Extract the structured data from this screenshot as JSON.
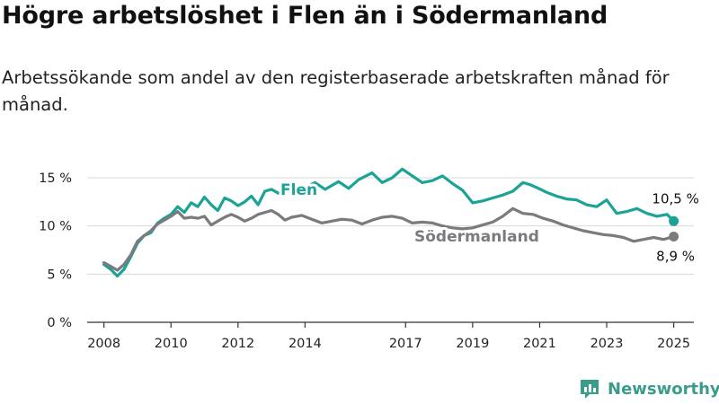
{
  "title": "Högre arbetslöshet i Flen än i Södermanland",
  "subtitle": "Arbetssökande som andel av den registerbaserade arbetskraften månad för månad.",
  "brand": {
    "name": "Newsworthy",
    "icon": "bar-chart-logo-icon"
  },
  "colors": {
    "flen": "#1ba396",
    "sodermanland": "#7a7a7f",
    "grid": "#d9d9d9",
    "axis": "#333333"
  },
  "chart_data": {
    "type": "line",
    "ylim": [
      0,
      15
    ],
    "yticks": [
      0,
      5,
      10,
      15
    ],
    "ytick_labels": [
      "0 %",
      "5 %",
      "10 %",
      "15 %"
    ],
    "xlim": [
      2007.5,
      2025.6
    ],
    "xticks": [
      2008,
      2010,
      2012,
      2014,
      2017,
      2019,
      2021,
      2023,
      2025
    ],
    "xtick_labels": [
      "2008",
      "2010",
      "2012",
      "2014",
      "2017",
      "2019",
      "2021",
      "2023",
      "2025"
    ],
    "grid": true,
    "series": [
      {
        "name": "Flen",
        "key": "flen",
        "end_label": "10,5 %",
        "x": [
          2008.0,
          2008.2,
          2008.4,
          2008.6,
          2008.8,
          2009.0,
          2009.2,
          2009.4,
          2009.6,
          2009.8,
          2010.0,
          2010.2,
          2010.4,
          2010.6,
          2010.8,
          2011.0,
          2011.2,
          2011.4,
          2011.6,
          2011.8,
          2012.0,
          2012.2,
          2012.4,
          2012.6,
          2012.8,
          2013.0,
          2013.2,
          2013.4,
          2013.6,
          2014.0,
          2014.3,
          2014.6,
          2015.0,
          2015.3,
          2015.6,
          2016.0,
          2016.3,
          2016.6,
          2016.9,
          2017.2,
          2017.5,
          2017.8,
          2018.1,
          2018.4,
          2018.7,
          2019.0,
          2019.3,
          2019.6,
          2019.9,
          2020.2,
          2020.5,
          2020.7,
          2020.9,
          2021.2,
          2021.5,
          2021.8,
          2022.1,
          2022.4,
          2022.7,
          2023.0,
          2023.3,
          2023.6,
          2023.9,
          2024.2,
          2024.5,
          2024.8,
          2025.0
        ],
        "y": [
          6.0,
          5.5,
          4.8,
          5.5,
          6.8,
          8.2,
          9.0,
          9.3,
          10.3,
          10.8,
          11.2,
          12.0,
          11.4,
          12.4,
          12.0,
          13.0,
          12.2,
          11.6,
          12.9,
          12.6,
          12.1,
          12.5,
          13.1,
          12.2,
          13.6,
          13.8,
          13.4,
          13.6,
          14.0,
          14.0,
          14.5,
          13.8,
          14.6,
          13.9,
          14.8,
          15.5,
          14.5,
          15.0,
          15.9,
          15.2,
          14.5,
          14.7,
          15.2,
          14.4,
          13.7,
          12.4,
          12.6,
          12.9,
          13.2,
          13.6,
          14.5,
          14.3,
          14.0,
          13.5,
          13.1,
          12.8,
          12.7,
          12.2,
          12.0,
          12.7,
          11.3,
          11.5,
          11.8,
          11.3,
          11.0,
          11.2,
          10.5
        ]
      },
      {
        "name": "Södermanland",
        "key": "sodermanland",
        "end_label": "8,9 %",
        "x": [
          2008.0,
          2008.2,
          2008.4,
          2008.6,
          2008.8,
          2009.0,
          2009.2,
          2009.4,
          2009.6,
          2009.8,
          2010.0,
          2010.2,
          2010.4,
          2010.6,
          2010.8,
          2011.0,
          2011.2,
          2011.4,
          2011.6,
          2011.8,
          2012.0,
          2012.2,
          2012.4,
          2012.6,
          2012.8,
          2013.0,
          2013.2,
          2013.4,
          2013.6,
          2013.9,
          2014.2,
          2014.5,
          2014.8,
          2015.1,
          2015.4,
          2015.7,
          2016.0,
          2016.3,
          2016.6,
          2016.9,
          2017.2,
          2017.5,
          2017.8,
          2018.1,
          2018.4,
          2018.7,
          2019.0,
          2019.3,
          2019.6,
          2019.9,
          2020.2,
          2020.5,
          2020.8,
          2021.1,
          2021.4,
          2021.7,
          2022.0,
          2022.3,
          2022.6,
          2022.9,
          2023.2,
          2023.5,
          2023.8,
          2024.1,
          2024.4,
          2024.7,
          2025.0
        ],
        "y": [
          6.2,
          5.8,
          5.4,
          6.0,
          7.0,
          8.4,
          9.0,
          9.5,
          10.2,
          10.6,
          11.0,
          11.5,
          10.8,
          10.9,
          10.8,
          11.0,
          10.1,
          10.5,
          10.9,
          11.2,
          10.9,
          10.5,
          10.8,
          11.2,
          11.4,
          11.6,
          11.2,
          10.6,
          10.9,
          11.1,
          10.7,
          10.3,
          10.5,
          10.7,
          10.6,
          10.2,
          10.6,
          10.9,
          11.0,
          10.8,
          10.3,
          10.4,
          10.3,
          10.0,
          9.8,
          9.7,
          9.8,
          10.1,
          10.4,
          11.0,
          11.8,
          11.3,
          11.2,
          10.8,
          10.5,
          10.1,
          9.8,
          9.5,
          9.3,
          9.1,
          9.0,
          8.8,
          8.4,
          8.6,
          8.8,
          8.6,
          8.9
        ]
      }
    ]
  }
}
